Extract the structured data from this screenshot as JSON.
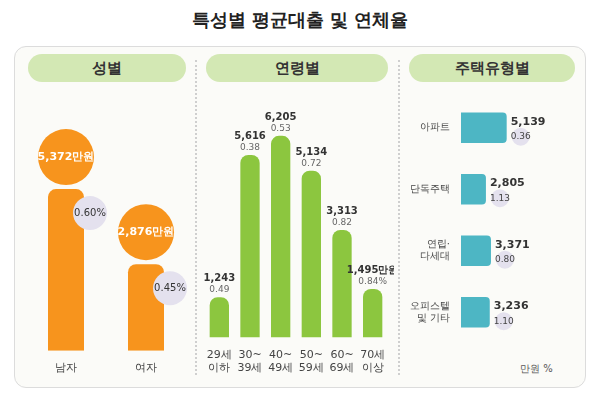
{
  "title": "특성별 평균대출 및 연체율",
  "chart_data": [
    {
      "type": "bar",
      "title": "성별",
      "categories": [
        "남자",
        "여자"
      ],
      "values": [
        5372,
        2876
      ],
      "value_labels": [
        "5,372만원",
        "2,876만원"
      ],
      "rates": [
        0.6,
        0.45
      ],
      "rate_labels": [
        "0.60%",
        "0.45%"
      ],
      "color": "#f7941d",
      "ylim": [
        0,
        8000
      ],
      "data_labels": true,
      "tick_labels": "x"
    },
    {
      "type": "bar",
      "title": "연령별",
      "categories": [
        [
          "29세",
          "이하"
        ],
        [
          "30~",
          "39세"
        ],
        [
          "40~",
          "49세"
        ],
        [
          "50~",
          "59세"
        ],
        [
          "60~",
          "69세"
        ],
        [
          "70세",
          "이상"
        ]
      ],
      "values": [
        1243,
        5616,
        6205,
        5134,
        3313,
        1495
      ],
      "value_labels": [
        "1,243",
        "5,616",
        "6,205",
        "5,134",
        "3,313",
        "1,495만원"
      ],
      "rates": [
        0.49,
        0.38,
        0.53,
        0.72,
        0.82,
        0.84
      ],
      "rate_labels": [
        "0.49",
        "0.38",
        "0.53",
        "0.72",
        "0.82",
        "0.84%"
      ],
      "color": "#8cc63f",
      "ylim": [
        0,
        7000
      ],
      "data_labels": true,
      "tick_labels": "x"
    },
    {
      "type": "bar",
      "title": "주택유형별",
      "orientation": "horizontal",
      "categories": [
        "아파트",
        "단독주택",
        [
          "연립·",
          "다세대"
        ],
        [
          "오피스텔",
          "및 기타"
        ]
      ],
      "values": [
        5139,
        2805,
        3371,
        3236
      ],
      "value_labels": [
        "5,139",
        "2,805",
        "3,371",
        "3,236"
      ],
      "rates": [
        0.36,
        1.13,
        0.8,
        1.1
      ],
      "rate_labels": [
        "0.36",
        "1.13",
        "0.80",
        "1.10"
      ],
      "value_unit": "만원",
      "rate_unit": "%",
      "color": "#4db6c4",
      "xlim": [
        0,
        9000
      ],
      "data_labels": true,
      "tick_labels": "y"
    }
  ]
}
